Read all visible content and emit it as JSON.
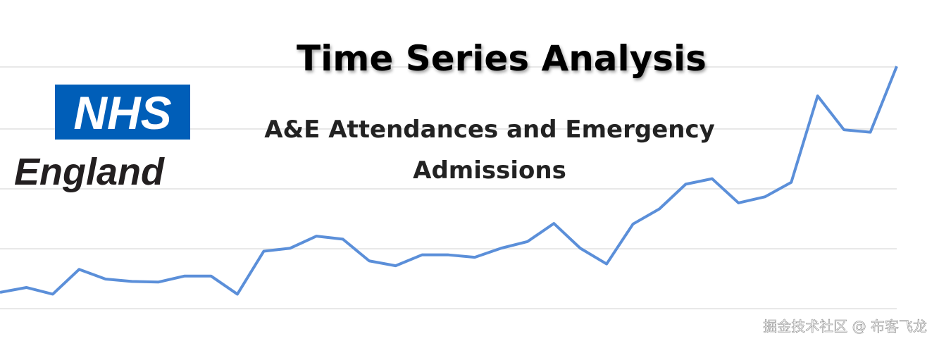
{
  "title": "Time Series Analysis",
  "subtitle": [
    "A&E Attendances and Emergency",
    "Admissions"
  ],
  "logo": {
    "badge": "NHS",
    "text": "England"
  },
  "watermark": "掘金技术社区 @ 布客飞龙",
  "chart_data": {
    "type": "line",
    "color": "#5b8fd9",
    "categories": [
      null,
      null,
      null,
      null,
      null,
      null,
      null,
      null,
      null,
      null,
      null,
      null,
      null,
      null,
      null,
      null,
      null,
      null,
      null,
      null,
      null,
      null,
      null,
      null,
      null,
      null,
      null,
      null,
      null,
      null,
      null,
      null,
      null,
      null,
      null
    ],
    "values": [
      0.27,
      0.35,
      0.24,
      0.65,
      0.49,
      0.45,
      0.44,
      0.54,
      0.54,
      0.24,
      0.95,
      1.0,
      1.2,
      1.15,
      0.79,
      0.71,
      0.89,
      0.89,
      0.85,
      1.0,
      1.11,
      1.41,
      1.0,
      0.74,
      1.4,
      1.65,
      2.06,
      2.15,
      1.75,
      1.85,
      2.09,
      3.52,
      2.96,
      2.92,
      4.01
    ],
    "ylim": [
      0,
      4
    ]
  }
}
